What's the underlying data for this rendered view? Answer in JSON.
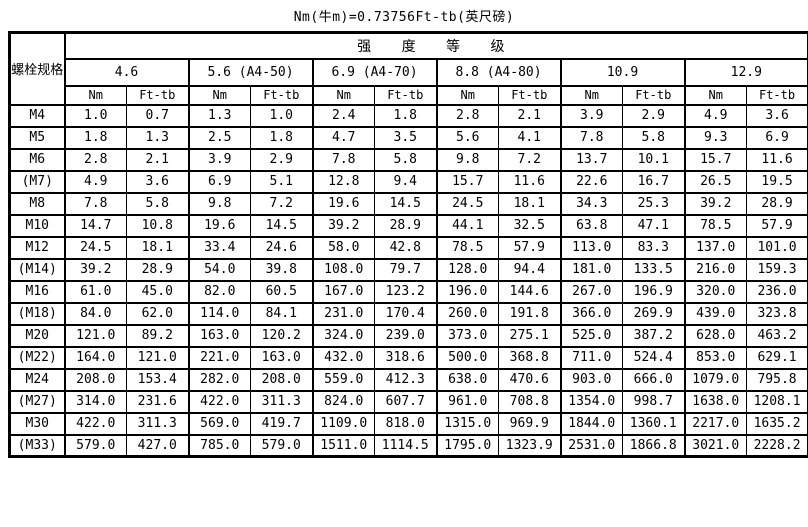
{
  "title": "Nm(牛m)=0.73756Ft-tb(英尺磅)",
  "colors": {
    "background": "#ffffff",
    "border": "#000000",
    "text": "#000000"
  },
  "table": {
    "spec_header": "螺栓规格",
    "strength_header": "强 度 等 级",
    "grades": [
      "4.6",
      "5.6 (A4-50)",
      "6.9 (A4-70)",
      "8.8 (A4-80)",
      "10.9",
      "12.9"
    ],
    "unit_labels": [
      "Nm",
      "Ft-tb"
    ],
    "rows": [
      {
        "spec": "M4",
        "values": [
          "1.0",
          "0.7",
          "1.3",
          "1.0",
          "2.4",
          "1.8",
          "2.8",
          "2.1",
          "3.9",
          "2.9",
          "4.9",
          "3.6"
        ]
      },
      {
        "spec": "M5",
        "values": [
          "1.8",
          "1.3",
          "2.5",
          "1.8",
          "4.7",
          "3.5",
          "5.6",
          "4.1",
          "7.8",
          "5.8",
          "9.3",
          "6.9"
        ]
      },
      {
        "spec": "M6",
        "values": [
          "2.8",
          "2.1",
          "3.9",
          "2.9",
          "7.8",
          "5.8",
          "9.8",
          "7.2",
          "13.7",
          "10.1",
          "15.7",
          "11.6"
        ]
      },
      {
        "spec": "(M7)",
        "values": [
          "4.9",
          "3.6",
          "6.9",
          "5.1",
          "12.8",
          "9.4",
          "15.7",
          "11.6",
          "22.6",
          "16.7",
          "26.5",
          "19.5"
        ]
      },
      {
        "spec": "M8",
        "values": [
          "7.8",
          "5.8",
          "9.8",
          "7.2",
          "19.6",
          "14.5",
          "24.5",
          "18.1",
          "34.3",
          "25.3",
          "39.2",
          "28.9"
        ]
      },
      {
        "spec": "M10",
        "values": [
          "14.7",
          "10.8",
          "19.6",
          "14.5",
          "39.2",
          "28.9",
          "44.1",
          "32.5",
          "63.8",
          "47.1",
          "78.5",
          "57.9"
        ]
      },
      {
        "spec": "M12",
        "values": [
          "24.5",
          "18.1",
          "33.4",
          "24.6",
          "58.0",
          "42.8",
          "78.5",
          "57.9",
          "113.0",
          "83.3",
          "137.0",
          "101.0"
        ]
      },
      {
        "spec": "(M14)",
        "values": [
          "39.2",
          "28.9",
          "54.0",
          "39.8",
          "108.0",
          "79.7",
          "128.0",
          "94.4",
          "181.0",
          "133.5",
          "216.0",
          "159.3"
        ]
      },
      {
        "spec": "M16",
        "values": [
          "61.0",
          "45.0",
          "82.0",
          "60.5",
          "167.0",
          "123.2",
          "196.0",
          "144.6",
          "267.0",
          "196.9",
          "320.0",
          "236.0"
        ]
      },
      {
        "spec": "(M18)",
        "values": [
          "84.0",
          "62.0",
          "114.0",
          "84.1",
          "231.0",
          "170.4",
          "260.0",
          "191.8",
          "366.0",
          "269.9",
          "439.0",
          "323.8"
        ]
      },
      {
        "spec": "M20",
        "values": [
          "121.0",
          "89.2",
          "163.0",
          "120.2",
          "324.0",
          "239.0",
          "373.0",
          "275.1",
          "525.0",
          "387.2",
          "628.0",
          "463.2"
        ]
      },
      {
        "spec": "(M22)",
        "values": [
          "164.0",
          "121.0",
          "221.0",
          "163.0",
          "432.0",
          "318.6",
          "500.0",
          "368.8",
          "711.0",
          "524.4",
          "853.0",
          "629.1"
        ]
      },
      {
        "spec": "M24",
        "values": [
          "208.0",
          "153.4",
          "282.0",
          "208.0",
          "559.0",
          "412.3",
          "638.0",
          "470.6",
          "903.0",
          "666.0",
          "1079.0",
          "795.8"
        ]
      },
      {
        "spec": "(M27)",
        "values": [
          "314.0",
          "231.6",
          "422.0",
          "311.3",
          "824.0",
          "607.7",
          "961.0",
          "708.8",
          "1354.0",
          "998.7",
          "1638.0",
          "1208.1"
        ]
      },
      {
        "spec": "M30",
        "values": [
          "422.0",
          "311.3",
          "569.0",
          "419.7",
          "1109.0",
          "818.0",
          "1315.0",
          "969.9",
          "1844.0",
          "1360.1",
          "2217.0",
          "1635.2"
        ]
      },
      {
        "spec": "(M33)",
        "values": [
          "579.0",
          "427.0",
          "785.0",
          "579.0",
          "1511.0",
          "1114.5",
          "1795.0",
          "1323.9",
          "2531.0",
          "1866.8",
          "3021.0",
          "2228.2"
        ]
      }
    ]
  }
}
